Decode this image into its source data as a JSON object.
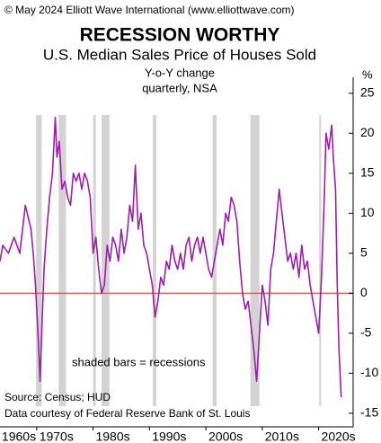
{
  "chart_data": {
    "type": "line",
    "copyright": "© May 2024 Elliott Wave International (www.elliottwave.com)",
    "title": "RECESSION WORTHY",
    "subtitle": "U.S. Median Sales Price of Houses Sold",
    "subtitle2": "Y-o-Y change",
    "subtitle3": "quarterly, NSA",
    "y_axis_label": "%",
    "annotation": "shaded bars = recessions",
    "source": "Source: Census; HUD",
    "credit": "Data courtesy of Federal Reserve Bank of St. Louis",
    "x": [
      1963.5,
      1964,
      1965,
      1966,
      1967,
      1967.5,
      1968,
      1969,
      1969.4,
      1969.8,
      1970.3,
      1970.6,
      1970.9,
      1971.3,
      1971.8,
      1972.3,
      1972.8,
      1973.3,
      1973.6,
      1974,
      1974.5,
      1975,
      1975.5,
      1976,
      1976.5,
      1977,
      1977.5,
      1978,
      1978.5,
      1979,
      1979.5,
      1980,
      1980.5,
      1981,
      1981.5,
      1982,
      1982.5,
      1983,
      1983.5,
      1984,
      1984.5,
      1985,
      1985.5,
      1986,
      1986.5,
      1987,
      1987.5,
      1988,
      1988.5,
      1989,
      1989.5,
      1990,
      1990.5,
      1991,
      1991.5,
      1992,
      1992.5,
      1993,
      1993.5,
      1994,
      1994.5,
      1995,
      1995.5,
      1996,
      1996.5,
      1997,
      1997.5,
      1998,
      1998.5,
      1999,
      1999.5,
      2000,
      2000.5,
      2001,
      2001.5,
      2002,
      2002.5,
      2003,
      2003.5,
      2004,
      2004.5,
      2005,
      2005.5,
      2006,
      2006.5,
      2007,
      2007.5,
      2008,
      2008.5,
      2009,
      2009.5,
      2010,
      2010.5,
      2011,
      2011.5,
      2012,
      2012.5,
      2013,
      2013.5,
      2014,
      2014.5,
      2015,
      2015.5,
      2016,
      2016.5,
      2017,
      2017.5,
      2018,
      2018.5,
      2019,
      2019.5,
      2020,
      2020.5,
      2021,
      2021.3,
      2021.8,
      2022.3,
      2022.6,
      2023,
      2023.3,
      2023.6,
      2024
    ],
    "series": [
      {
        "name": "Y-o-Y change",
        "color": "#9b1fa8",
        "values": [
          4,
          6,
          5,
          7,
          5,
          8,
          11,
          8,
          5,
          1,
          -6,
          -11,
          -5,
          3,
          8,
          12,
          15,
          22,
          17,
          19,
          13,
          14,
          12,
          11,
          15,
          14,
          15,
          13,
          15,
          14,
          12,
          5,
          7,
          3,
          0,
          1,
          6,
          4,
          7,
          6,
          4,
          8,
          5,
          7,
          11,
          9,
          16,
          8,
          10,
          6,
          5,
          3,
          1,
          -3,
          -1,
          2,
          1,
          4,
          3,
          6,
          4,
          3,
          5,
          3,
          6,
          7,
          4,
          6,
          7,
          5,
          7,
          5,
          3,
          2,
          4,
          6,
          8,
          6,
          10,
          9,
          12,
          11,
          9,
          4,
          0,
          -2,
          -1,
          -4,
          -7,
          -11,
          -5,
          1,
          -1,
          -4,
          3,
          5,
          9,
          13,
          10,
          7,
          4,
          5,
          3,
          5,
          2,
          6,
          3,
          4,
          1,
          -1,
          -3,
          -5,
          2,
          12,
          20,
          18,
          21,
          17,
          13,
          1,
          -7,
          -13
        ]
      }
    ],
    "recessions": [
      [
        1969.9,
        1970.9
      ],
      [
        1973.9,
        1975.2
      ],
      [
        1980.0,
        1980.5
      ],
      [
        1981.5,
        1982.9
      ],
      [
        1990.6,
        1991.2
      ],
      [
        2001.2,
        2001.9
      ],
      [
        2007.9,
        2009.5
      ],
      [
        2020.1,
        2020.3
      ]
    ],
    "recession_color": "#d3d3d3",
    "zero_line_color": "#e0605a",
    "xlim": [
      1963.5,
      2025
    ],
    "xticks": [
      {
        "value": 1960,
        "label": "1960s"
      },
      {
        "value": 1970,
        "label": "1970s"
      },
      {
        "value": 1980,
        "label": "1980s"
      },
      {
        "value": 1990,
        "label": "1990s"
      },
      {
        "value": 2000,
        "label": "2000s"
      },
      {
        "value": 2010,
        "label": "2010s"
      },
      {
        "value": 2020,
        "label": "2020s"
      }
    ],
    "ylim": [
      -16.7,
      27
    ],
    "yticks": [
      -15,
      -10,
      -5,
      0,
      5,
      10,
      15,
      20,
      25
    ],
    "grid": false
  }
}
